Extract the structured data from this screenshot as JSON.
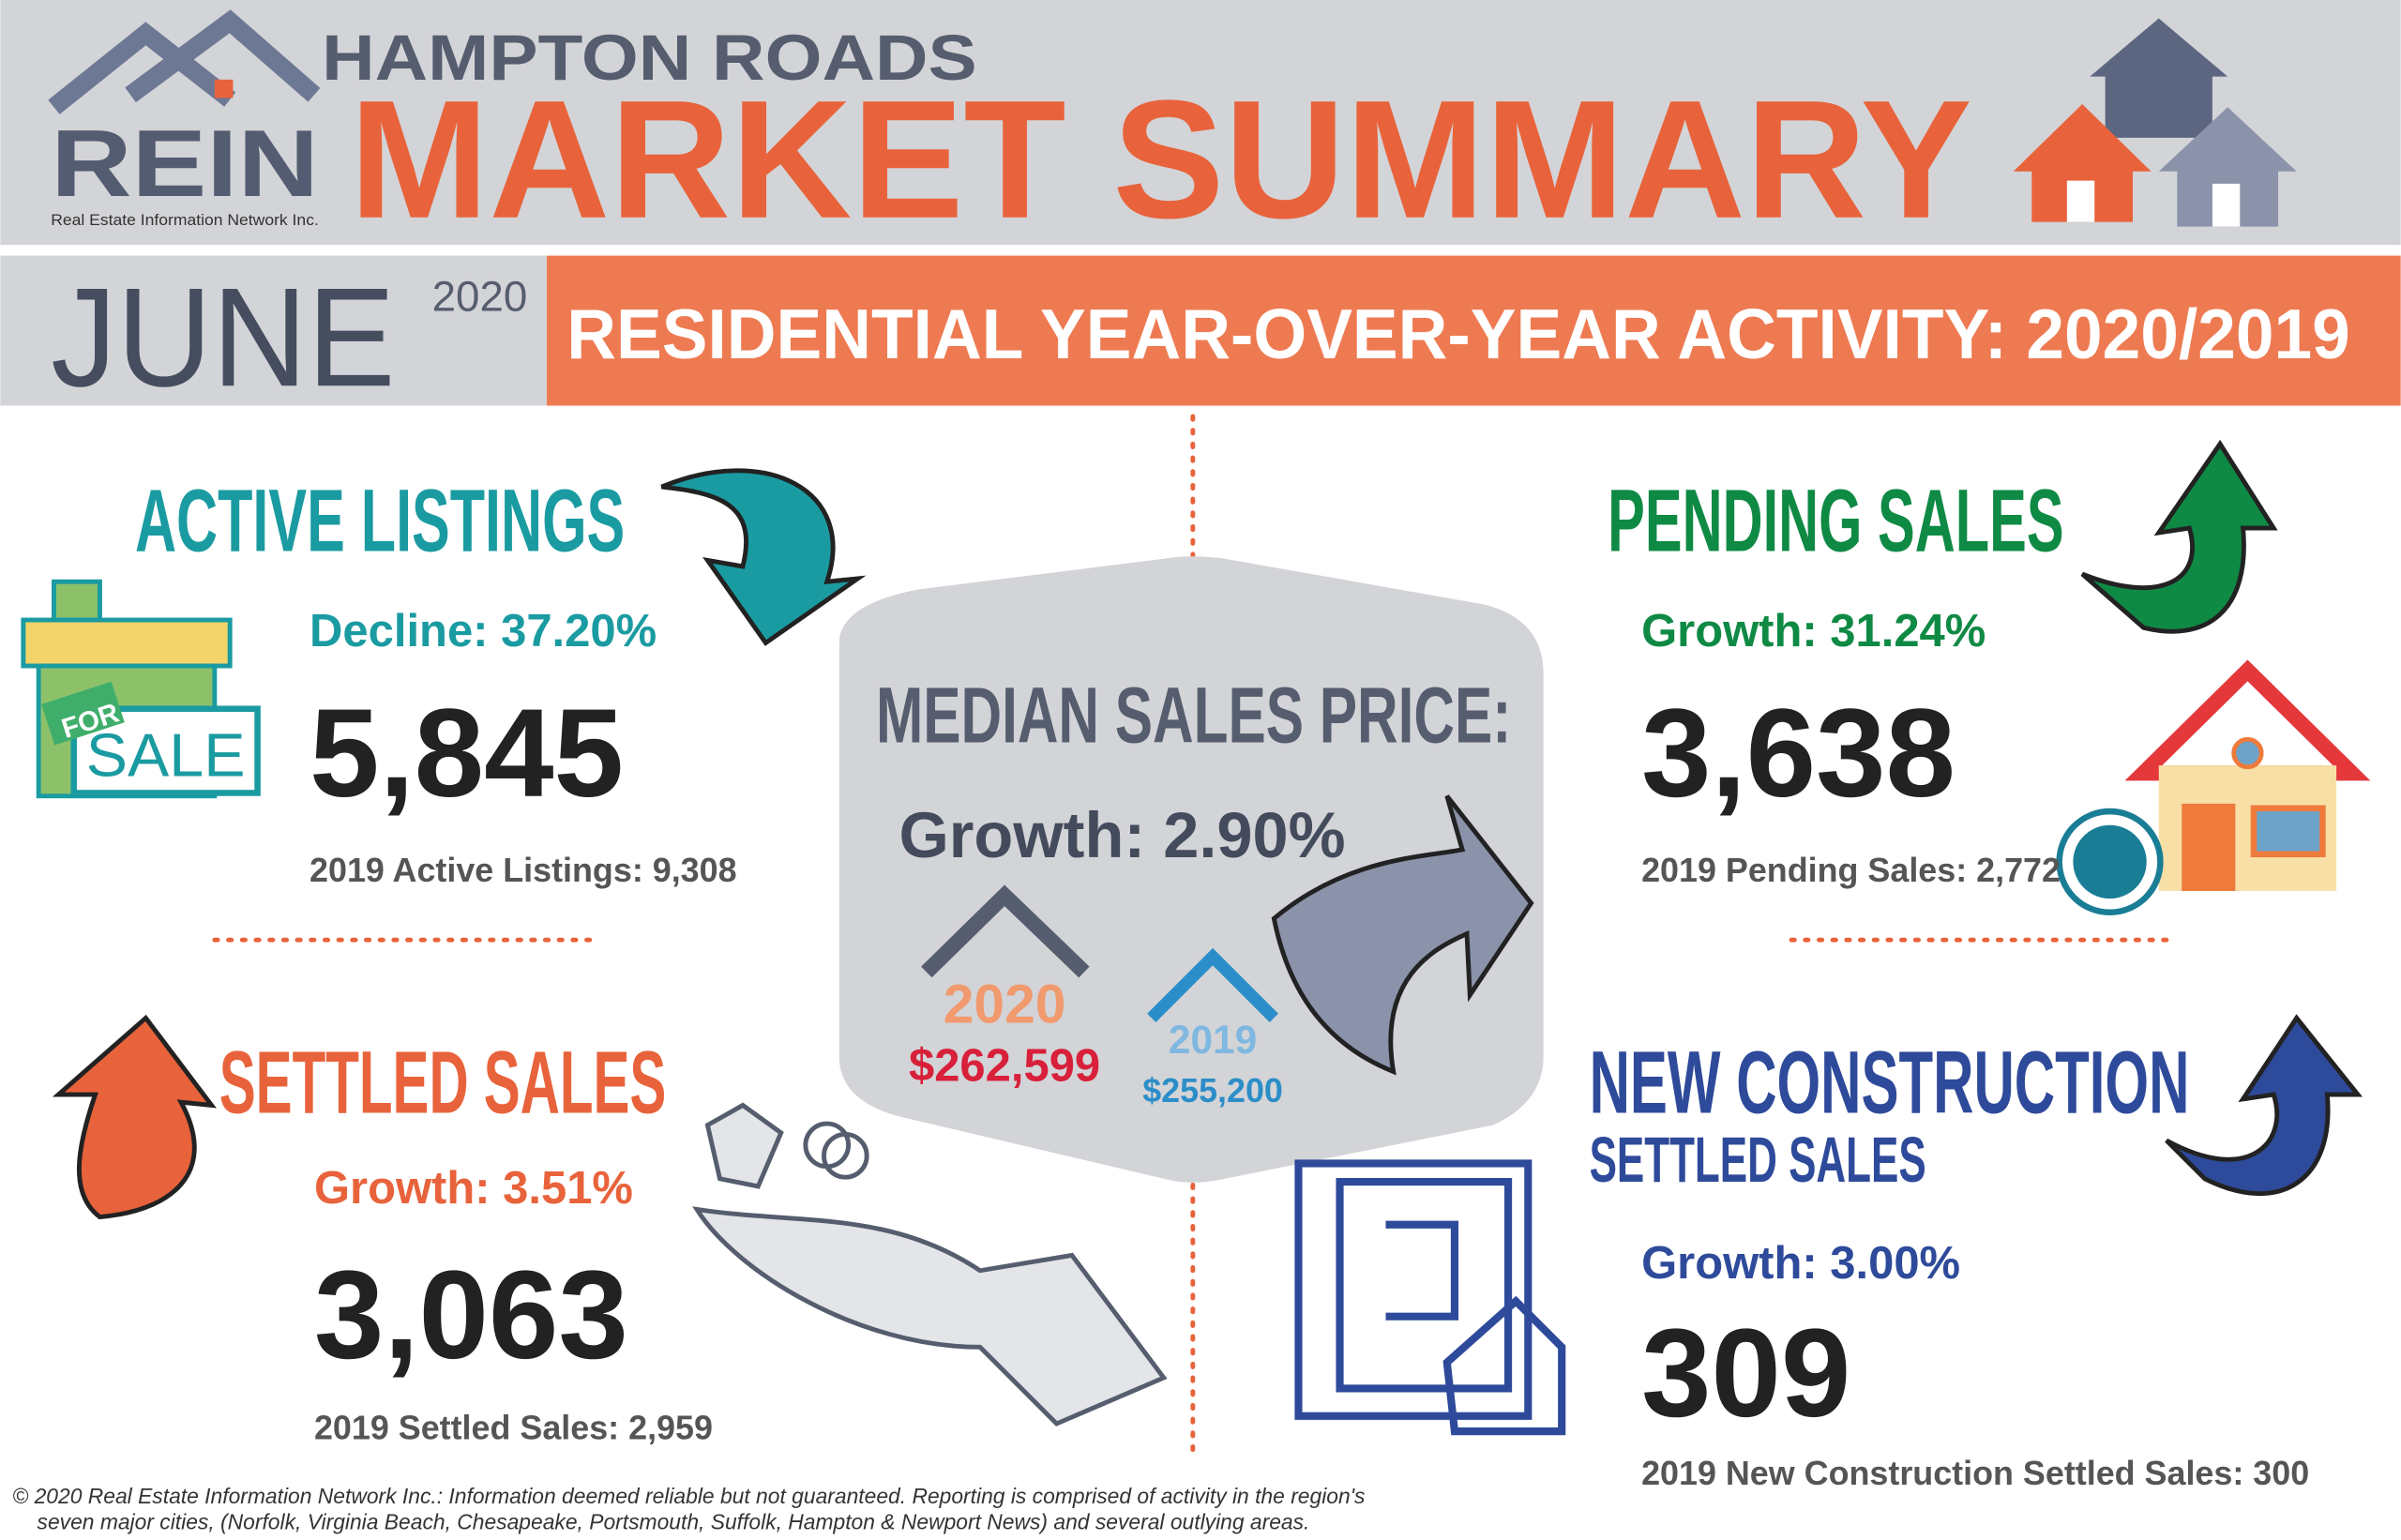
{
  "header": {
    "logo": "REIN",
    "logo_subtitle": "Real Estate Information Network Inc.",
    "region": "HAMPTON ROADS",
    "title": "MARKET SUMMARY",
    "month": "JUNE",
    "year": "2020",
    "banner": "RESIDENTIAL YEAR-OVER-YEAR ACTIVITY: 2020/2019"
  },
  "active_listings": {
    "title": "ACTIVE LISTINGS",
    "change": "Decline: 37.20%",
    "value": "5,845",
    "prior": "2019 Active Listings: 9,308",
    "sign_small": "FOR",
    "sign_large": "SALE"
  },
  "median_sales_price": {
    "title": "MEDIAN SALES PRICE:",
    "change": "Growth: 2.90%",
    "current_year": "2020",
    "current_value": "$262,599",
    "prior_year": "2019",
    "prior_value": "$255,200"
  },
  "pending_sales": {
    "title": "PENDING SALES",
    "change": "Growth: 31.24%",
    "value": "3,638",
    "prior": "2019 Pending Sales: 2,772"
  },
  "settled_sales": {
    "title": "SETTLED SALES",
    "change": "Growth: 3.51%",
    "value": "3,063",
    "prior": "2019 Settled Sales: 2,959"
  },
  "new_construction": {
    "title": "NEW CONSTRUCTION",
    "subtitle": "SETTLED SALES",
    "change": "Growth: 3.00%",
    "value": "309",
    "prior": "2019 New Construction Settled Sales: 300"
  },
  "footer": {
    "lines": [
      "© 2020 Real Estate Information Network Inc.: Information deemed reliable but not guaranteed. Reporting is comprised of activity in the region's",
      "seven major cities, (Norfolk, Virginia Beach, Chesapeake, Portsmouth, Suffolk, Hampton & Newport News) and several outlying areas."
    ]
  }
}
